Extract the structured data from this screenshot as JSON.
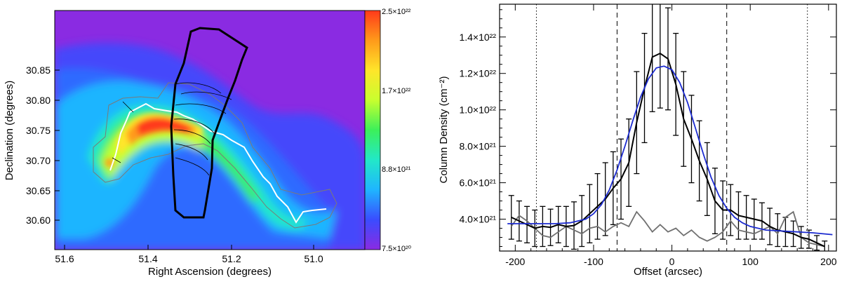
{
  "figure": {
    "left_panel": {
      "type": "heatmap",
      "xlabel": "Right Ascension (degrees)",
      "ylabel": "Declination (degrees)",
      "x_ticks": [
        "51.6",
        "51.4",
        "51.2",
        "51.0"
      ],
      "y_ticks": [
        "30.60",
        "30.65",
        "30.70",
        "30.75",
        "30.80",
        "30.85"
      ],
      "colorbar": {
        "max": "2.5×10²²",
        "upper_mid": "1.7×10²²",
        "lower_mid": "8.8×10²¹",
        "min": "7.5×10²⁰",
        "colors": [
          "#8a2be2",
          "#3a4cff",
          "#1fb5ff",
          "#22e8c8",
          "#3cf05a",
          "#c8ff2e",
          "#ffe52a",
          "#ff9a1a",
          "#ff3a1a"
        ]
      }
    },
    "chart_data": {
      "type": "line",
      "xlabel": "Offset (arcsec)",
      "ylabel": "Column Density (cm⁻²)",
      "xlim": [
        -220,
        210
      ],
      "ylim": [
        2.25e+21,
        1.58e+22
      ],
      "x_ticks": [
        "-200",
        "-100",
        "0",
        "100",
        "200"
      ],
      "y_ticks": [
        "4.0×10²¹",
        "6.0×10²¹",
        "8.0×10²¹",
        "1.0×10²²",
        "1.2×10²²",
        "1.4×10²²"
      ],
      "y_tick_values": [
        4e+21,
        6e+21,
        8e+21,
        1e+22,
        1.2e+22,
        1.4e+22
      ],
      "vlines": [
        {
          "x": -173,
          "style": "dotted"
        },
        {
          "x": -70,
          "style": "dashed"
        },
        {
          "x": 70,
          "style": "dashed"
        },
        {
          "x": 173,
          "style": "dotted"
        }
      ],
      "series": [
        {
          "color": "#000000",
          "x": [
            -205,
            -195,
            -185,
            -175,
            -165,
            -155,
            -145,
            -135,
            -125,
            -115,
            -105,
            -95,
            -85,
            -75,
            -65,
            -55,
            -45,
            -35,
            -25,
            -15,
            -5,
            5,
            15,
            25,
            35,
            45,
            55,
            65,
            75,
            85,
            95,
            105,
            115,
            125,
            135,
            145,
            155,
            165,
            175,
            185,
            195
          ],
          "values": [
            4.1e+21,
            3.9e+21,
            3.7e+21,
            3.5e+21,
            3.6e+21,
            3.55e+21,
            3.7e+21,
            3.6e+21,
            3.65e+21,
            3.9e+21,
            4.3e+21,
            4.7e+21,
            5.1e+21,
            5.7e+21,
            6.2e+21,
            7.1e+21,
            9.3e+21,
            1.12e+22,
            1.29e+22,
            1.31e+22,
            1.28e+22,
            1.14e+22,
            9.5e+21,
            8.4e+21,
            7.2e+21,
            6.2e+21,
            5e+21,
            4.5e+21,
            4.5e+21,
            4.2e+21,
            4.1e+21,
            4e+21,
            3.9e+21,
            3.6e+21,
            3.4e+21,
            3.3e+21,
            3.2e+21,
            3e+21,
            2.9e+21,
            2.7e+21,
            2.5e+21
          ],
          "errors": [
            1.2e+21,
            1.1e+21,
            1e+21,
            1e+21,
            1.1e+21,
            1e+21,
            1e+21,
            1.1e+21,
            1.3e+21,
            1.4e+21,
            1.6e+21,
            1.8e+21,
            2e+21,
            2e+21,
            2.2e+21,
            2.4e+21,
            2.8e+21,
            3e+21,
            3e+21,
            3e+21,
            2.8e+21,
            2.8e+21,
            2.6e+21,
            2.4e+21,
            2.2e+21,
            2e+21,
            1.8e+21,
            1.6e+21,
            1.4e+21,
            1.3e+21,
            1.2e+21,
            1.1e+21,
            1e+21,
            1e+21,
            9e+20,
            8e+20,
            7e+20,
            6e+20,
            5e+20,
            4e+20,
            3e+20
          ]
        },
        {
          "color": "#1c2bd0",
          "x": [
            -210,
            -190,
            -170,
            -150,
            -130,
            -110,
            -100,
            -90,
            -80,
            -70,
            -60,
            -50,
            -40,
            -30,
            -20,
            -10,
            0,
            10,
            20,
            30,
            40,
            50,
            60,
            70,
            80,
            90,
            100,
            110,
            120,
            140,
            160,
            180,
            205
          ],
          "values": [
            3.75e+21,
            3.75e+21,
            3.75e+21,
            3.75e+21,
            3.8e+21,
            4e+21,
            4.3e+21,
            4.8e+21,
            5.6e+21,
            6.7e+21,
            8e+21,
            9.4e+21,
            1.07e+22,
            1.17e+22,
            1.23e+22,
            1.24e+22,
            1.22e+22,
            1.15e+22,
            1.04e+22,
            9e+21,
            7.6e+21,
            6.3e+21,
            5.3e+21,
            4.6e+21,
            4.1e+21,
            3.8e+21,
            3.6e+21,
            3.5e+21,
            3.4e+21,
            3.35e+21,
            3.3e+21,
            3.25e+21,
            3.15e+21
          ]
        },
        {
          "color": "#707070",
          "x": [
            -205,
            -195,
            -185,
            -175,
            -165,
            -155,
            -145,
            -135,
            -125,
            -115,
            -105,
            -95,
            -85,
            -75,
            -65,
            -55,
            -45,
            -35,
            -25,
            -15,
            -5,
            5,
            15,
            25,
            35,
            45,
            55,
            65,
            75,
            85,
            95,
            105,
            115,
            125,
            135,
            145,
            155,
            165,
            175,
            185,
            195
          ],
          "values": [
            3.6e+21,
            4.2e+21,
            3.9e+21,
            3.5e+21,
            3.1e+21,
            3e+21,
            3.3e+21,
            3.6e+21,
            3.4e+21,
            3.2e+21,
            3.5e+21,
            3.6e+21,
            3.3e+21,
            3.6e+21,
            3.8e+21,
            3.6e+21,
            4.4e+21,
            3.9e+21,
            3.3e+21,
            3.7e+21,
            3.3e+21,
            3.5e+21,
            3.1e+21,
            3.4e+21,
            3e+21,
            2.8e+21,
            3e+21,
            3.3e+21,
            3.9e+21,
            3.4e+21,
            3.3e+21,
            3.2e+21,
            3.4e+21,
            3.6e+21,
            3.2e+21,
            4.1e+21,
            4.4e+21,
            3e+21,
            2.7e+21,
            2.6e+21,
            2.5e+21
          ]
        }
      ]
    }
  }
}
